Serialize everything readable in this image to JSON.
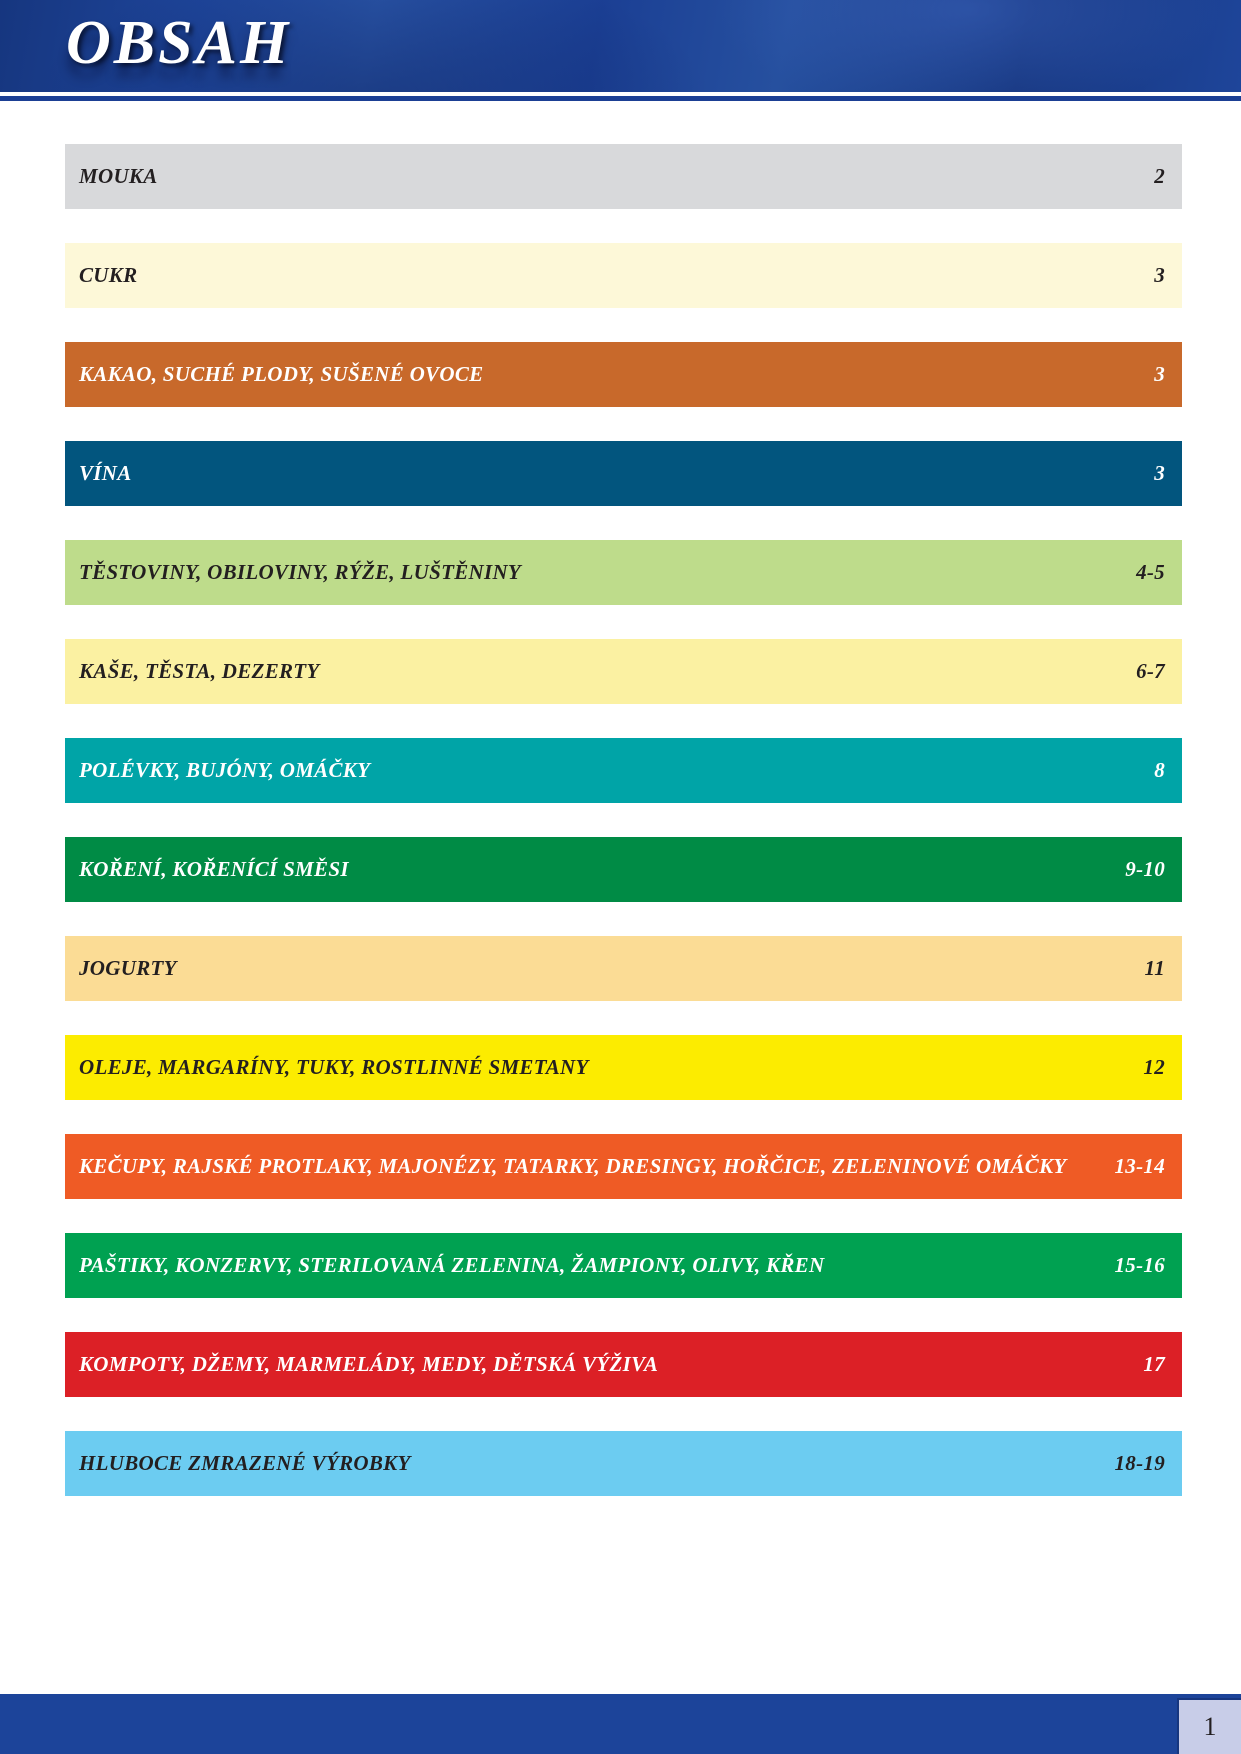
{
  "header": {
    "title": "OBSAH"
  },
  "toc": {
    "items": [
      {
        "label": "MOUKA",
        "page": "2",
        "bg": "#d8d9db",
        "fg": "#231f20"
      },
      {
        "label": "CUKR",
        "page": "3",
        "bg": "#fdf8d8",
        "fg": "#231f20"
      },
      {
        "label": "KAKAO, SUCHÉ PLODY, SUŠENÉ OVOCE",
        "page": "3",
        "bg": "#c8692b",
        "fg": "#ffffff"
      },
      {
        "label": "VÍNA",
        "page": "3",
        "bg": "#02557e",
        "fg": "#ffffff"
      },
      {
        "label": "TĚSTOVINY, OBILOVINY, RÝŽE, LUŠTĚNINY",
        "page": "4-5",
        "bg": "#bedc8b",
        "fg": "#231f20"
      },
      {
        "label": "KAŠE, TĚSTA, DEZERTY",
        "page": "6-7",
        "bg": "#fbf1a2",
        "fg": "#231f20"
      },
      {
        "label": "POLÉVKY, BUJÓNY, OMÁČKY",
        "page": "8",
        "bg": "#00a4a7",
        "fg": "#ffffff"
      },
      {
        "label": "KOŘENÍ, KOŘENÍCÍ SMĚSI",
        "page": "9-10",
        "bg": "#008b45",
        "fg": "#ffffff"
      },
      {
        "label": "JOGURTY",
        "page": "11",
        "bg": "#fbdc95",
        "fg": "#231f20"
      },
      {
        "label": "OLEJE, MARGARÍNY, TUKY, ROSTLINNÉ SMETANY",
        "page": "12",
        "bg": "#fcec00",
        "fg": "#231f20"
      },
      {
        "label": "KEČUPY, RAJSKÉ PROTLAKY, MAJONÉZY, TATARKY, DRESINGY, HOŘČICE, ZELENINOVÉ OMÁČKY",
        "page": "13-14",
        "bg": "#ef5b25",
        "fg": "#ffffff"
      },
      {
        "label": "PAŠTIKY, KONZERVY, STERILOVANÁ ZELENINA, ŽAMPIONY, OLIVY, KŘEN",
        "page": "15-16",
        "bg": "#00a151",
        "fg": "#ffffff"
      },
      {
        "label": "KOMPOTY, DŽEMY, MARMELÁDY, MEDY, DĚTSKÁ VÝŽIVA",
        "page": "17",
        "bg": "#dc2026",
        "fg": "#ffffff"
      },
      {
        "label": "HLUBOCE ZMRAZENÉ VÝROBKY",
        "page": "18-19",
        "bg": "#6cccf1",
        "fg": "#231f20"
      }
    ]
  },
  "footer": {
    "page_number": "1",
    "bar_color": "#1c449a",
    "box_color": "#c8cde8"
  }
}
